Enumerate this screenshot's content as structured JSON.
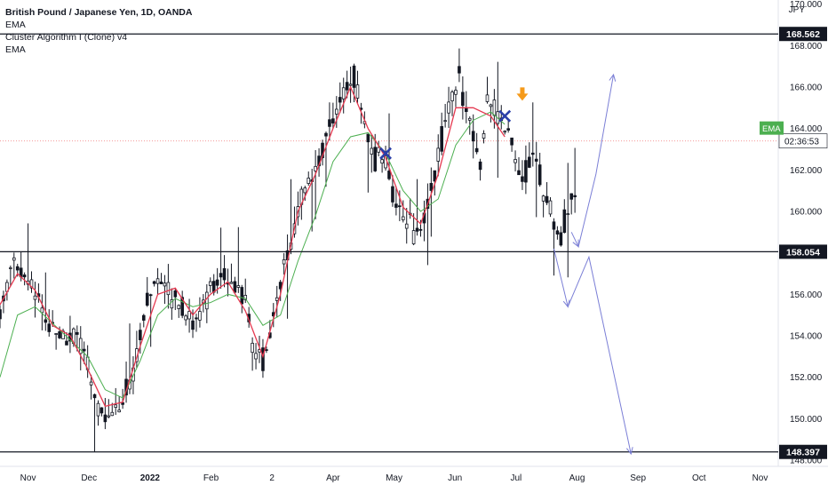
{
  "header": {
    "symbol": "British Pound / Japanese Yen, 1D, OANDA",
    "indicators": [
      "EMA",
      "Cluster Algorithm I (Clone) v4",
      "EMA"
    ],
    "currency": "JPY"
  },
  "chart_data": {
    "type": "candlestick",
    "y_range": [
      147.7,
      170.2
    ],
    "y_ticks": [
      "148.000",
      "150.000",
      "152.000",
      "154.000",
      "156.000",
      "158.000",
      "160.000",
      "162.000",
      "164.000",
      "166.000",
      "168.000",
      "170.000"
    ],
    "x_ticks": [
      "Nov",
      "Dec",
      "2022",
      "Feb",
      "2",
      "Apr",
      "May",
      "Jun",
      "Jul",
      "Aug",
      "Sep",
      "Oct",
      "Nov"
    ],
    "levels": [
      {
        "label": "168.562",
        "value": 168.562
      },
      {
        "label": "158.054",
        "value": 158.054
      },
      {
        "label": "148.397",
        "value": 148.397
      }
    ],
    "current_price": {
      "value": 163.4,
      "countdown": "02:36:53"
    },
    "ema_badge": {
      "label": "EMA",
      "value": 164.0,
      "color": "#4caf50"
    },
    "ema_fast_color": "#e53950",
    "ema_slow_color": "#4caf50",
    "projection_color": "#7b7fd6",
    "signal_marker_colors": {
      "x": "#2a3ea8",
      "arrow": "#f59a1a"
    },
    "price_path": [
      [
        0,
        155.2
      ],
      [
        4,
        157.6
      ],
      [
        7,
        156.7
      ],
      [
        10,
        156.2
      ],
      [
        13,
        154.7
      ],
      [
        16,
        154.4
      ],
      [
        19,
        153.8
      ],
      [
        22,
        154.1
      ],
      [
        25,
        152.3
      ],
      [
        27,
        150.8
      ],
      [
        30,
        150.0
      ],
      [
        33,
        150.6
      ],
      [
        35,
        150.9
      ],
      [
        38,
        152.1
      ],
      [
        40,
        154.2
      ],
      [
        43,
        156.2
      ],
      [
        46,
        157.0
      ],
      [
        49,
        156.0
      ],
      [
        52,
        155.4
      ],
      [
        55,
        154.5
      ],
      [
        58,
        155.6
      ],
      [
        61,
        156.2
      ],
      [
        63,
        157.0
      ],
      [
        66,
        156.7
      ],
      [
        69,
        156.1
      ],
      [
        71,
        154.8
      ],
      [
        73,
        153.0
      ],
      [
        75,
        152.8
      ],
      [
        77,
        154.3
      ],
      [
        80,
        156.6
      ],
      [
        83,
        158.4
      ],
      [
        86,
        160.8
      ],
      [
        89,
        161.6
      ],
      [
        92,
        162.9
      ],
      [
        95,
        164.4
      ],
      [
        98,
        165.7
      ],
      [
        101,
        166.4
      ],
      [
        104,
        164.2
      ],
      [
        107,
        162.5
      ],
      [
        110,
        162.8
      ],
      [
        113,
        160.2
      ],
      [
        116,
        159.6
      ],
      [
        119,
        158.9
      ],
      [
        122,
        160.1
      ],
      [
        125,
        162.6
      ],
      [
        128,
        165.2
      ],
      [
        131,
        166.6
      ],
      [
        134,
        164.2
      ],
      [
        137,
        162.4
      ],
      [
        139,
        165.6
      ],
      [
        142,
        164.6
      ],
      [
        145,
        163.8
      ],
      [
        147,
        162.2
      ],
      [
        149,
        161.4
      ],
      [
        152,
        163.0
      ],
      [
        155,
        161.0
      ],
      [
        158,
        159.6
      ],
      [
        160,
        158.8
      ],
      [
        162,
        160.1
      ],
      [
        164,
        160.6
      ]
    ],
    "ema_fast": [
      [
        0,
        155.5
      ],
      [
        5,
        157.0
      ],
      [
        10,
        156.2
      ],
      [
        15,
        154.5
      ],
      [
        20,
        154.0
      ],
      [
        25,
        152.4
      ],
      [
        30,
        150.6
      ],
      [
        35,
        150.8
      ],
      [
        40,
        153.5
      ],
      [
        45,
        156.0
      ],
      [
        50,
        156.3
      ],
      [
        55,
        155.0
      ],
      [
        60,
        156.0
      ],
      [
        65,
        156.6
      ],
      [
        70,
        155.2
      ],
      [
        75,
        153.0
      ],
      [
        80,
        156.0
      ],
      [
        85,
        160.0
      ],
      [
        90,
        161.8
      ],
      [
        95,
        164.0
      ],
      [
        100,
        166.0
      ],
      [
        105,
        164.0
      ],
      [
        110,
        162.6
      ],
      [
        115,
        160.2
      ],
      [
        120,
        159.4
      ],
      [
        125,
        161.8
      ],
      [
        130,
        165.0
      ],
      [
        135,
        165.0
      ],
      [
        140,
        164.6
      ],
      [
        144,
        163.6
      ]
    ],
    "ema_slow": [
      [
        0,
        152.0
      ],
      [
        5,
        155.0
      ],
      [
        10,
        155.4
      ],
      [
        15,
        154.6
      ],
      [
        20,
        153.8
      ],
      [
        25,
        153.0
      ],
      [
        30,
        151.4
      ],
      [
        35,
        151.0
      ],
      [
        40,
        152.8
      ],
      [
        45,
        155.0
      ],
      [
        50,
        155.8
      ],
      [
        55,
        155.4
      ],
      [
        60,
        155.6
      ],
      [
        65,
        156.0
      ],
      [
        70,
        155.8
      ],
      [
        75,
        154.5
      ],
      [
        80,
        155.0
      ],
      [
        85,
        157.6
      ],
      [
        90,
        159.8
      ],
      [
        95,
        162.4
      ],
      [
        100,
        163.6
      ],
      [
        105,
        163.8
      ],
      [
        110,
        162.8
      ],
      [
        115,
        161.0
      ],
      [
        120,
        160.0
      ],
      [
        125,
        160.6
      ],
      [
        130,
        163.2
      ],
      [
        135,
        164.4
      ],
      [
        140,
        164.8
      ],
      [
        144,
        164.2
      ]
    ],
    "projection_up": [
      [
        163,
        159.0
      ],
      [
        165,
        158.3
      ],
      [
        170,
        161.8
      ],
      [
        175,
        166.6
      ]
    ],
    "projection_down": [
      [
        158,
        158.2
      ],
      [
        162,
        155.4
      ],
      [
        168,
        157.8
      ],
      [
        180,
        148.3
      ]
    ],
    "x_index_range": [
      0,
      222
    ]
  }
}
